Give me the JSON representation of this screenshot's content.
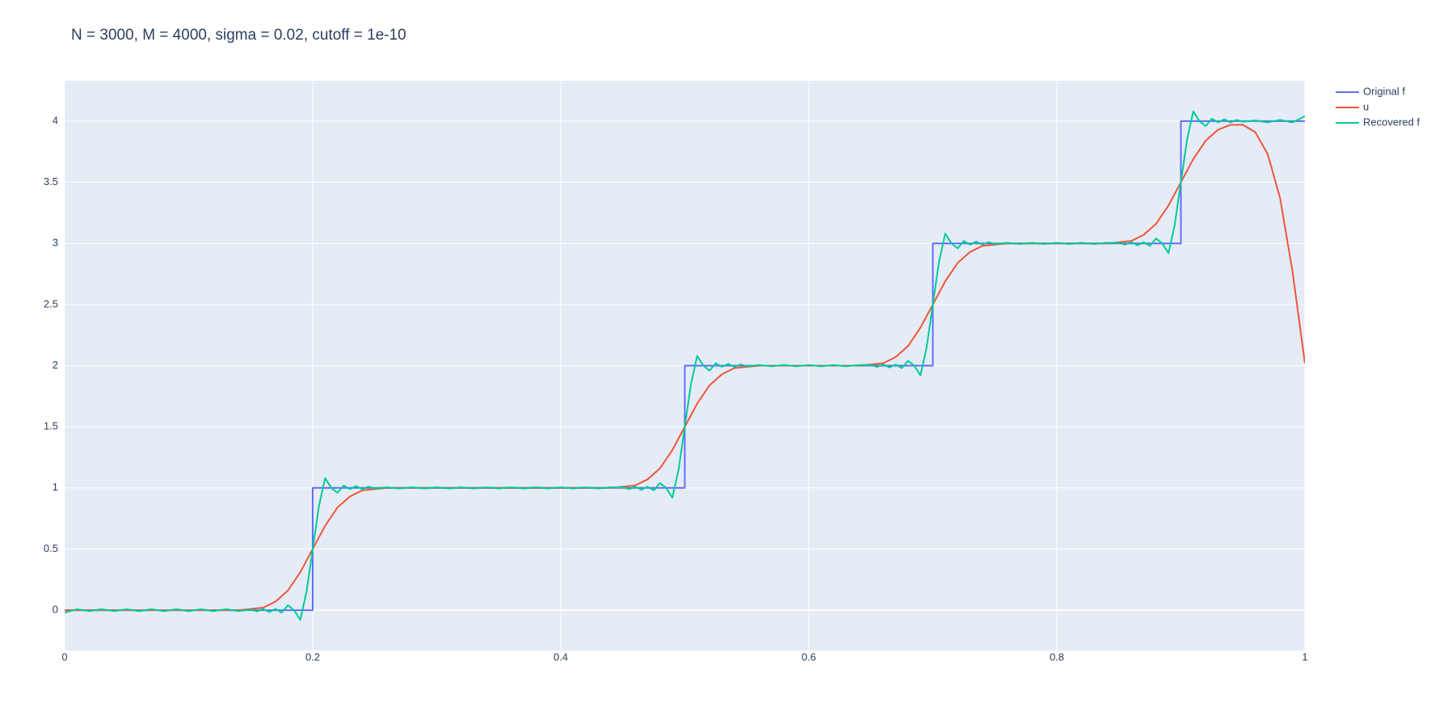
{
  "chart_data": {
    "type": "line",
    "title": "N = 3000, M = 4000, sigma = 0.02, cutoff = 1e-10",
    "xlim": [
      0,
      1
    ],
    "ylim": [
      -0.33,
      4.33
    ],
    "xticks": [
      0,
      0.2,
      0.4,
      0.6,
      0.8,
      1
    ],
    "yticks": [
      0,
      0.5,
      1,
      1.5,
      2,
      2.5,
      3,
      3.5,
      4
    ],
    "grid": true,
    "legend": "top-right",
    "background": "#e5ecf6",
    "series": [
      {
        "name": "Original f",
        "color": "#636efa",
        "x": [
          0,
          0.2,
          0.2,
          0.5,
          0.5,
          0.7,
          0.7,
          0.9,
          0.9,
          1
        ],
        "values": [
          0,
          0,
          1,
          1,
          2,
          2,
          3,
          3,
          4,
          4
        ]
      },
      {
        "name": "u",
        "color": "#ef553b",
        "x": [
          0,
          0.14,
          0.15,
          0.16,
          0.17,
          0.18,
          0.19,
          0.2,
          0.21,
          0.22,
          0.23,
          0.24,
          0.25,
          0.26,
          0.44,
          0.45,
          0.46,
          0.47,
          0.48,
          0.49,
          0.5,
          0.51,
          0.52,
          0.53,
          0.54,
          0.55,
          0.56,
          0.64,
          0.65,
          0.66,
          0.67,
          0.68,
          0.69,
          0.7,
          0.71,
          0.72,
          0.73,
          0.74,
          0.75,
          0.76,
          0.84,
          0.85,
          0.86,
          0.87,
          0.88,
          0.89,
          0.9,
          0.91,
          0.92,
          0.93,
          0.94,
          0.95,
          0.96,
          0.97,
          0.98,
          0.99,
          1
        ],
        "values": [
          0,
          0,
          0.01,
          0.02,
          0.07,
          0.16,
          0.31,
          0.5,
          0.69,
          0.84,
          0.93,
          0.98,
          0.99,
          1,
          1,
          1.01,
          1.02,
          1.07,
          1.16,
          1.31,
          1.5,
          1.69,
          1.84,
          1.93,
          1.98,
          1.99,
          2,
          2,
          2.01,
          2.02,
          2.07,
          2.16,
          2.31,
          2.5,
          2.69,
          2.84,
          2.93,
          2.98,
          2.99,
          3,
          3,
          3.01,
          3.02,
          3.07,
          3.16,
          3.31,
          3.5,
          3.69,
          3.84,
          3.93,
          3.97,
          3.97,
          3.91,
          3.73,
          3.37,
          2.77,
          2.02
        ]
      },
      {
        "name": "Recovered f",
        "color": "#00cc96",
        "x": [
          0,
          0.01,
          0.02,
          0.03,
          0.04,
          0.05,
          0.06,
          0.07,
          0.08,
          0.09,
          0.1,
          0.11,
          0.12,
          0.13,
          0.14,
          0.15,
          0.155,
          0.16,
          0.165,
          0.17,
          0.175,
          0.18,
          0.185,
          0.19,
          0.195,
          0.2,
          0.205,
          0.21,
          0.215,
          0.22,
          0.225,
          0.23,
          0.235,
          0.24,
          0.245,
          0.25,
          0.26,
          0.27,
          0.28,
          0.29,
          0.3,
          0.31,
          0.32,
          0.33,
          0.34,
          0.35,
          0.36,
          0.37,
          0.38,
          0.39,
          0.4,
          0.41,
          0.42,
          0.43,
          0.44,
          0.45,
          0.455,
          0.46,
          0.465,
          0.47,
          0.475,
          0.48,
          0.485,
          0.49,
          0.495,
          0.5,
          0.505,
          0.51,
          0.515,
          0.52,
          0.525,
          0.53,
          0.535,
          0.54,
          0.545,
          0.55,
          0.56,
          0.57,
          0.58,
          0.59,
          0.6,
          0.61,
          0.62,
          0.63,
          0.64,
          0.65,
          0.655,
          0.66,
          0.665,
          0.67,
          0.675,
          0.68,
          0.685,
          0.69,
          0.695,
          0.7,
          0.705,
          0.71,
          0.715,
          0.72,
          0.725,
          0.73,
          0.735,
          0.74,
          0.745,
          0.75,
          0.76,
          0.77,
          0.78,
          0.79,
          0.8,
          0.81,
          0.82,
          0.83,
          0.84,
          0.85,
          0.855,
          0.86,
          0.865,
          0.87,
          0.875,
          0.88,
          0.885,
          0.89,
          0.895,
          0.9,
          0.905,
          0.91,
          0.915,
          0.92,
          0.925,
          0.93,
          0.935,
          0.94,
          0.945,
          0.95,
          0.96,
          0.97,
          0.98,
          0.99,
          1
        ],
        "values": [
          -0.02,
          0.008,
          -0.008,
          0.008,
          -0.008,
          0.008,
          -0.008,
          0.008,
          -0.008,
          0.008,
          -0.008,
          0.008,
          -0.008,
          0.008,
          -0.008,
          0.005,
          -0.01,
          0.01,
          -0.015,
          0.01,
          -0.02,
          0.04,
          0,
          -0.08,
          0.15,
          0.5,
          0.85,
          1.08,
          1,
          0.96,
          1.02,
          0.99,
          1.015,
          0.99,
          1.01,
          0.995,
          1.005,
          0.995,
          1.005,
          0.995,
          1.005,
          0.995,
          1.005,
          0.995,
          1.005,
          0.995,
          1.005,
          0.995,
          1.005,
          0.995,
          1.005,
          0.995,
          1.005,
          0.995,
          1.005,
          1.005,
          0.99,
          1.01,
          0.985,
          1.01,
          0.98,
          1.04,
          1,
          0.92,
          1.15,
          1.5,
          1.85,
          2.08,
          2,
          1.96,
          2.02,
          1.99,
          2.015,
          1.99,
          2.01,
          1.995,
          2.005,
          1.995,
          2.005,
          1.995,
          2.005,
          1.995,
          2.005,
          1.995,
          2.005,
          2.005,
          1.99,
          2.01,
          1.985,
          2.01,
          1.98,
          2.04,
          2,
          1.92,
          2.15,
          2.5,
          2.85,
          3.08,
          3,
          2.96,
          3.02,
          2.99,
          3.015,
          2.99,
          3.01,
          2.995,
          3.005,
          2.995,
          3.005,
          2.995,
          3.005,
          2.995,
          3.005,
          2.995,
          3.005,
          3.005,
          2.99,
          3.01,
          2.985,
          3.01,
          2.98,
          3.04,
          3,
          2.92,
          3.15,
          3.5,
          3.85,
          4.08,
          4,
          3.96,
          4.02,
          3.99,
          4.015,
          3.99,
          4.01,
          3.995,
          4.005,
          3.99,
          4.01,
          3.99,
          4.04
        ]
      }
    ]
  }
}
